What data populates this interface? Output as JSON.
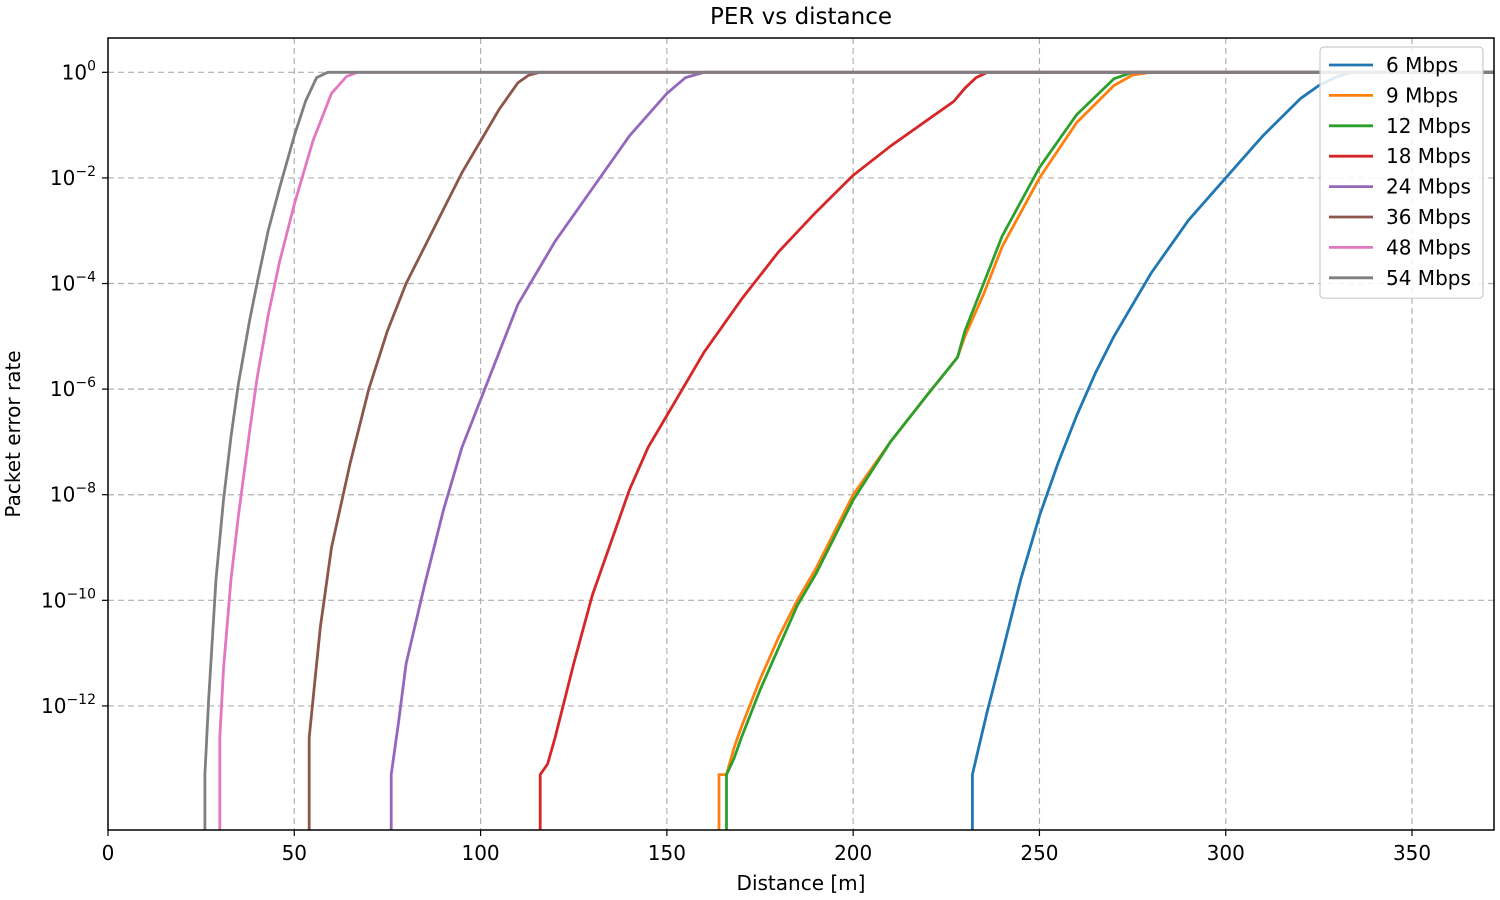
{
  "chart_data": {
    "type": "line",
    "title": "PER vs distance",
    "xlabel": "Distance [m]",
    "ylabel": "Packet error rate",
    "xlim": [
      0,
      372
    ],
    "ylim_log10": [
      -14.35,
      0.65
    ],
    "yscale": "log",
    "grid": true,
    "legend_position": "top-right",
    "x_ticks": [
      0,
      50,
      100,
      150,
      200,
      250,
      300,
      350
    ],
    "y_ticks": [
      {
        "exp": 0,
        "base": "10",
        "sup": "0"
      },
      {
        "exp": -2,
        "base": "10",
        "sup": "−2"
      },
      {
        "exp": -4,
        "base": "10",
        "sup": "−4"
      },
      {
        "exp": -6,
        "base": "10",
        "sup": "−6"
      },
      {
        "exp": -8,
        "base": "10",
        "sup": "−8"
      },
      {
        "exp": -10,
        "base": "10",
        "sup": "−10"
      },
      {
        "exp": -12,
        "base": "10",
        "sup": "−12"
      }
    ],
    "series": [
      {
        "name": "6 Mbps",
        "color": "#1f77b4",
        "x": [
          232,
          232,
          234,
          236,
          240,
          245,
          250,
          255,
          260,
          265,
          270,
          280,
          290,
          300,
          310,
          320,
          325,
          330,
          334,
          340,
          372
        ],
        "log10_y": [
          -14.6,
          -13.3,
          -12.7,
          -12.1,
          -11.0,
          -9.6,
          -8.4,
          -7.4,
          -6.5,
          -5.7,
          -5.0,
          -3.8,
          -2.8,
          -2.0,
          -1.2,
          -0.5,
          -0.25,
          -0.08,
          0,
          0,
          0
        ]
      },
      {
        "name": "9 Mbps",
        "color": "#ff7f0e",
        "x": [
          164,
          164,
          166,
          166,
          168,
          170,
          175,
          180,
          185,
          190,
          195,
          200,
          210,
          220,
          228,
          230,
          235,
          240,
          250,
          260,
          270,
          275,
          280,
          285,
          372
        ],
        "log10_y": [
          -14.6,
          -13.3,
          -13.3,
          -13.3,
          -12.8,
          -12.4,
          -11.5,
          -10.7,
          -10.0,
          -9.4,
          -8.7,
          -8.0,
          -7.0,
          -6.1,
          -5.4,
          -5.0,
          -4.2,
          -3.3,
          -2.0,
          -0.95,
          -0.25,
          -0.05,
          0,
          0,
          0
        ]
      },
      {
        "name": "12 Mbps",
        "color": "#2ca02c",
        "x": [
          166,
          166,
          168,
          170,
          175,
          180,
          185,
          190,
          195,
          200,
          210,
          220,
          228,
          230,
          235,
          240,
          250,
          260,
          270,
          275,
          280,
          372
        ],
        "log10_y": [
          -14.6,
          -13.3,
          -13.0,
          -12.6,
          -11.7,
          -10.9,
          -10.1,
          -9.5,
          -8.8,
          -8.1,
          -7.0,
          -6.1,
          -5.4,
          -4.9,
          -4.0,
          -3.1,
          -1.8,
          -0.8,
          -0.12,
          0,
          0,
          0
        ]
      },
      {
        "name": "18 Mbps",
        "color": "#d62728",
        "x": [
          116,
          116,
          118,
          120,
          125,
          130,
          135,
          140,
          145,
          150,
          160,
          170,
          180,
          190,
          200,
          210,
          220,
          227,
          230,
          233,
          236,
          240,
          372
        ],
        "log10_y": [
          -14.6,
          -13.3,
          -13.1,
          -12.6,
          -11.2,
          -9.9,
          -8.9,
          -7.9,
          -7.1,
          -6.5,
          -5.3,
          -4.3,
          -3.4,
          -2.65,
          -1.95,
          -1.4,
          -0.9,
          -0.55,
          -0.3,
          -0.1,
          0,
          0,
          0
        ]
      },
      {
        "name": "24 Mbps",
        "color": "#9467bd",
        "x": [
          76,
          76,
          78,
          80,
          85,
          90,
          95,
          100,
          110,
          120,
          130,
          140,
          150,
          155,
          160,
          372
        ],
        "log10_y": [
          -14.6,
          -13.3,
          -12.3,
          -11.2,
          -9.7,
          -8.3,
          -7.1,
          -6.2,
          -4.4,
          -3.2,
          -2.2,
          -1.2,
          -0.4,
          -0.1,
          0,
          0
        ]
      },
      {
        "name": "36 Mbps",
        "color": "#8c564b",
        "x": [
          54,
          54,
          55,
          57,
          60,
          65,
          70,
          75,
          80,
          85,
          90,
          95,
          100,
          105,
          110,
          113,
          116,
          372
        ],
        "log10_y": [
          -14.6,
          -12.6,
          -11.9,
          -10.5,
          -9.0,
          -7.4,
          -6.0,
          -4.9,
          -4.0,
          -3.3,
          -2.6,
          -1.9,
          -1.3,
          -0.7,
          -0.2,
          -0.05,
          0,
          0
        ]
      },
      {
        "name": "48 Mbps",
        "color": "#e377c2",
        "x": [
          30,
          30,
          31,
          33,
          35,
          38,
          40,
          43,
          46,
          50,
          55,
          60,
          64,
          67,
          372
        ],
        "log10_y": [
          -14.6,
          -12.6,
          -11.3,
          -9.6,
          -8.4,
          -6.8,
          -5.8,
          -4.6,
          -3.6,
          -2.5,
          -1.3,
          -0.4,
          -0.08,
          0,
          0
        ]
      },
      {
        "name": "54 Mbps",
        "color": "#7f7f7f",
        "x": [
          26,
          26,
          27,
          29,
          31,
          33,
          35,
          38,
          40,
          43,
          46,
          50,
          53,
          56,
          59,
          372
        ],
        "log10_y": [
          -14.6,
          -13.3,
          -11.9,
          -9.6,
          -8.1,
          -6.9,
          -5.9,
          -4.7,
          -4.0,
          -3.0,
          -2.2,
          -1.2,
          -0.55,
          -0.1,
          0,
          0
        ]
      }
    ]
  }
}
